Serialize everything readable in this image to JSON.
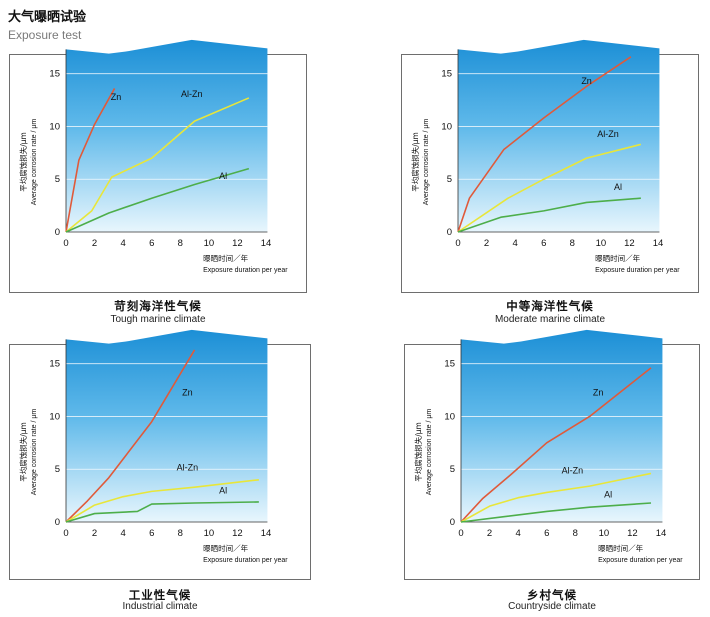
{
  "header": {
    "title": "大气曝晒试验",
    "subtitle": "Exposure test"
  },
  "colors": {
    "sky_top": "#1c8fd6",
    "sky_bottom": "#e8f6fd",
    "Zn": "#e05a3a",
    "Al-Zn": "#e8e63a",
    "Al": "#4dae4a",
    "frame": "#6e6e6e"
  },
  "chart_data": [
    {
      "type": "line",
      "caption_cn": "苛刻海洋性气候",
      "caption_en": "Tough marine climate",
      "ylabel_cn": "平均腐蚀损失/μm",
      "ylabel_en": "Average corrosion rate / μm",
      "xlabel_cn": "曝晒时间／年",
      "xlabel_en": "Exposure duration per year",
      "xlim": [
        0,
        14
      ],
      "ylim": [
        0,
        18
      ],
      "xticks": [
        "0",
        "2",
        "4",
        "6",
        "8",
        "10",
        "12",
        "14"
      ],
      "yticks": [
        "5",
        "10",
        "15"
      ],
      "series": [
        {
          "name": "Zn",
          "x": [
            0,
            0.9,
            2.0,
            3.4
          ],
          "y": [
            0,
            6.8,
            10.2,
            13.6
          ]
        },
        {
          "name": "Al-Zn",
          "x": [
            0,
            1.8,
            3.2,
            6.0,
            9.0,
            12.8
          ],
          "y": [
            0,
            2.0,
            5.2,
            7.0,
            10.5,
            12.7
          ]
        },
        {
          "name": "Al",
          "x": [
            0,
            3.0,
            6.0,
            9.0,
            12.8
          ],
          "y": [
            0,
            1.8,
            3.2,
            4.5,
            6.0
          ]
        }
      ]
    },
    {
      "type": "line",
      "caption_cn": "中等海洋性气候",
      "caption_en": "Moderate marine climate",
      "ylabel_cn": "平均腐蚀损失/μm",
      "ylabel_en": "Average corrosion rate / μm",
      "xlabel_cn": "曝晒时间／年",
      "xlabel_en": "Exposure duration per year",
      "xlim": [
        0,
        14
      ],
      "ylim": [
        0,
        18
      ],
      "xticks": [
        "0",
        "2",
        "4",
        "6",
        "8",
        "10",
        "12",
        "14"
      ],
      "yticks": [
        "5",
        "10",
        "15"
      ],
      "series": [
        {
          "name": "Zn",
          "x": [
            0,
            0.8,
            3.2,
            6.0,
            9.0,
            12.1
          ],
          "y": [
            0,
            3.2,
            7.8,
            10.8,
            13.8,
            16.6
          ]
        },
        {
          "name": "Al-Zn",
          "x": [
            0,
            3.5,
            6.0,
            9.0,
            12.8
          ],
          "y": [
            0,
            3.2,
            5.0,
            7.0,
            8.3
          ]
        },
        {
          "name": "Al",
          "x": [
            0,
            3.0,
            6.0,
            9.0,
            12.8
          ],
          "y": [
            0,
            1.4,
            2.0,
            2.8,
            3.2
          ]
        }
      ]
    },
    {
      "type": "line",
      "caption_cn": "工业性气候",
      "caption_en": "Industrial climate",
      "ylabel_cn": "平均腐蚀损失/μm",
      "ylabel_en": "Average corrosion rate / μm",
      "xlabel_cn": "曝晒时间／年",
      "xlabel_en": "Exposure duration per year",
      "xlim": [
        0,
        14
      ],
      "ylim": [
        0,
        18
      ],
      "xticks": [
        "0",
        "2",
        "4",
        "6",
        "8",
        "10",
        "12",
        "14"
      ],
      "yticks": [
        "5",
        "10",
        "15"
      ],
      "series": [
        {
          "name": "Zn",
          "x": [
            0,
            1.5,
            3.0,
            6.0,
            9.0
          ],
          "y": [
            0,
            2.0,
            4.2,
            9.5,
            16.3
          ]
        },
        {
          "name": "Al-Zn",
          "x": [
            0,
            2.0,
            4.0,
            6.0,
            9.0,
            13.5
          ],
          "y": [
            0,
            1.6,
            2.4,
            2.9,
            3.3,
            4.0
          ]
        },
        {
          "name": "Al",
          "x": [
            0,
            2.0,
            5.0,
            6.0,
            9.0,
            13.5
          ],
          "y": [
            0,
            0.8,
            1.0,
            1.7,
            1.8,
            1.9
          ]
        }
      ]
    },
    {
      "type": "line",
      "caption_cn": "乡村气候",
      "caption_en": "Countryside climate",
      "ylabel_cn": "平均腐蚀损失/μm",
      "ylabel_en": "Average corrosion rate / μm",
      "xlabel_cn": "曝晒时间／年",
      "xlabel_en": "Exposure duration per year",
      "xlim": [
        0,
        14
      ],
      "ylim": [
        0,
        18
      ],
      "xticks": [
        "0",
        "2",
        "4",
        "6",
        "8",
        "10",
        "12",
        "14"
      ],
      "yticks": [
        "5",
        "10",
        "15"
      ],
      "series": [
        {
          "name": "Zn",
          "x": [
            0,
            1.5,
            3.5,
            6.0,
            9.0,
            13.3
          ],
          "y": [
            0,
            2.2,
            4.5,
            7.5,
            10.0,
            14.6
          ]
        },
        {
          "name": "Al-Zn",
          "x": [
            0,
            2.0,
            4.0,
            6.0,
            9.0,
            13.3
          ],
          "y": [
            0,
            1.5,
            2.3,
            2.8,
            3.4,
            4.6
          ]
        },
        {
          "name": "Al",
          "x": [
            0,
            3.0,
            6.0,
            9.0,
            13.3
          ],
          "y": [
            0,
            0.5,
            1.0,
            1.4,
            1.8
          ]
        }
      ]
    }
  ]
}
